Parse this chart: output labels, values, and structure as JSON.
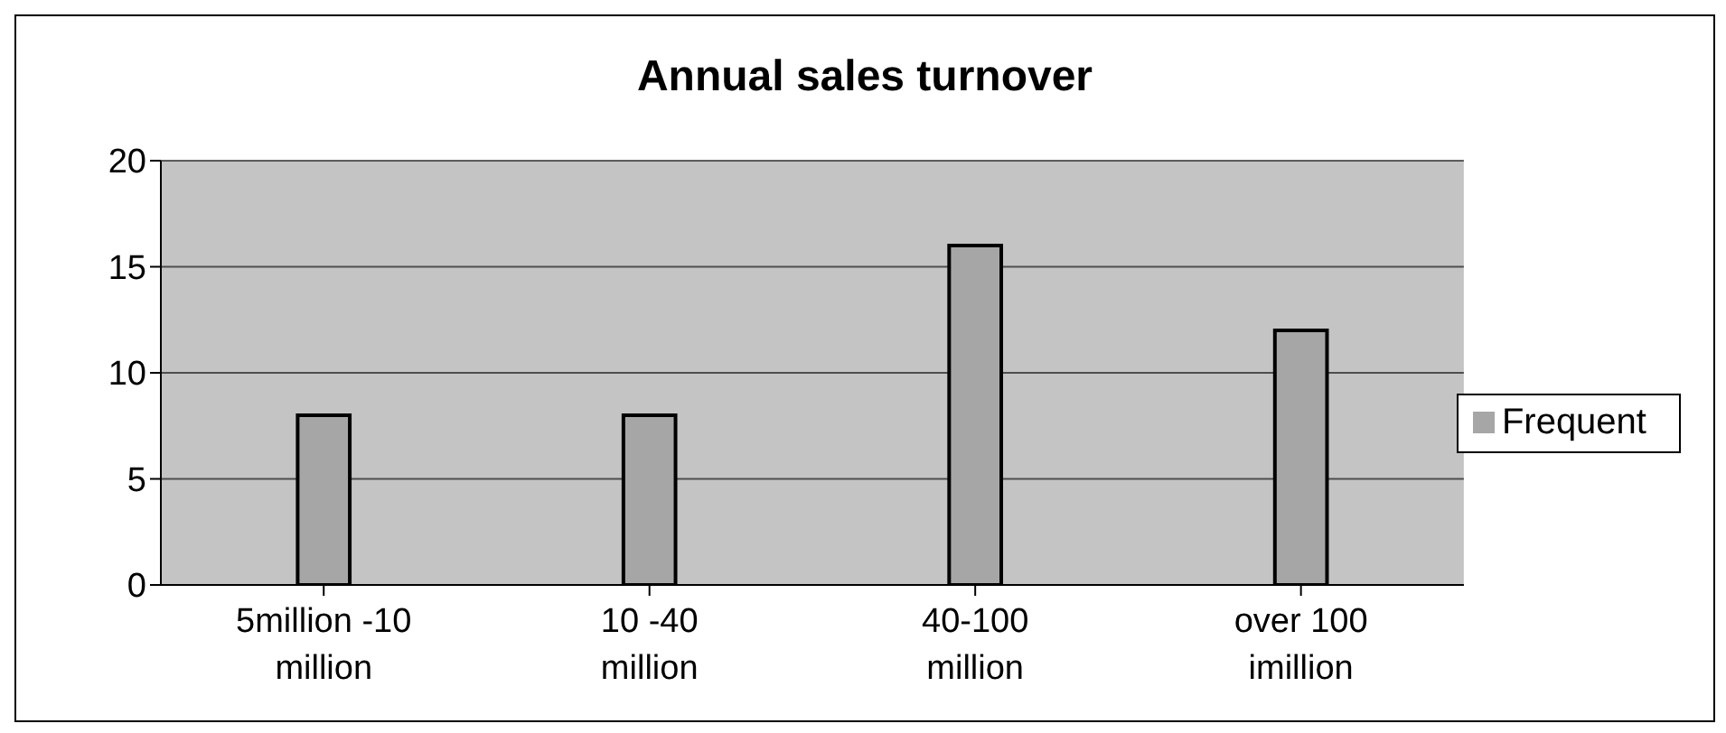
{
  "chart_data": {
    "type": "bar",
    "title": "Annual sales turnover",
    "categories": [
      "5million -10 million",
      "10 -40 million",
      "40-100 million",
      "over 100 imillion"
    ],
    "series": [
      {
        "name": "Frequent",
        "color": "#a6a6a6",
        "values": [
          8,
          8,
          16,
          12
        ]
      }
    ],
    "ylim": [
      0,
      20
    ],
    "yticks": [
      0,
      5,
      10,
      15,
      20
    ],
    "grid": "y",
    "legend": "right"
  }
}
